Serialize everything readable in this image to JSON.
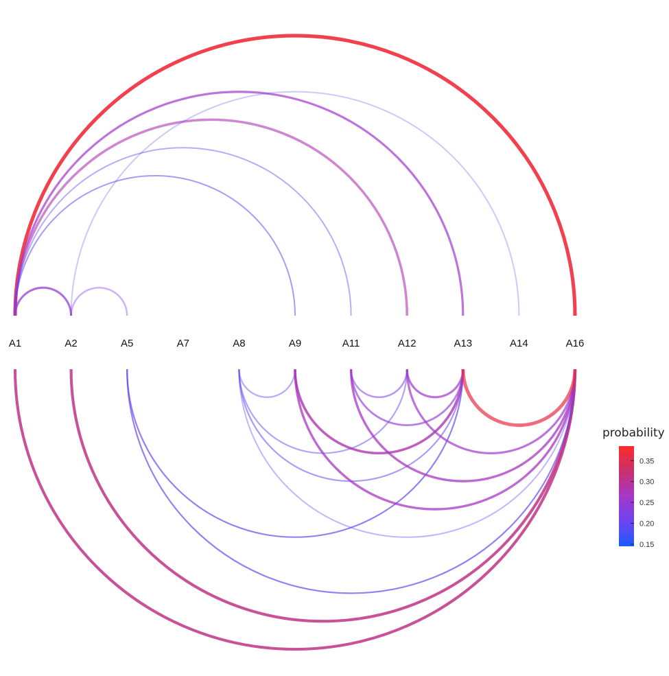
{
  "nodes": [
    "A1",
    "A2",
    "A5",
    "A7",
    "A8",
    "A9",
    "A11",
    "A12",
    "A13",
    "A14",
    "A16"
  ],
  "legend": {
    "title": "probability",
    "ticks": [
      "0.35",
      "0.30",
      "0.25",
      "0.20",
      "0.15"
    ],
    "tick_values": [
      0.35,
      0.3,
      0.25,
      0.2,
      0.15
    ],
    "min": 0.145,
    "max": 0.385,
    "colors": [
      "#1a5cff",
      "#6e44f0",
      "#a438c8",
      "#c8306e",
      "#ff2a2a"
    ]
  },
  "edges_upper": [
    {
      "from": "A1",
      "to": "A16",
      "probability": 0.37,
      "opacity": 0.9
    },
    {
      "from": "A1",
      "to": "A13",
      "probability": 0.26,
      "opacity": 0.7
    },
    {
      "from": "A1",
      "to": "A12",
      "probability": 0.28,
      "opacity": 0.6
    },
    {
      "from": "A1",
      "to": "A11",
      "probability": 0.19,
      "opacity": 0.45
    },
    {
      "from": "A1",
      "to": "A9",
      "probability": 0.19,
      "opacity": 0.55
    },
    {
      "from": "A2",
      "to": "A14",
      "probability": 0.19,
      "opacity": 0.3
    },
    {
      "from": "A1",
      "to": "A2",
      "probability": 0.25,
      "opacity": 0.75
    },
    {
      "from": "A2",
      "to": "A5",
      "probability": 0.22,
      "opacity": 0.4
    }
  ],
  "edges_lower": [
    {
      "from": "A1",
      "to": "A16",
      "probability": 0.31,
      "opacity": 0.85
    },
    {
      "from": "A2",
      "to": "A16",
      "probability": 0.31,
      "opacity": 0.85
    },
    {
      "from": "A5",
      "to": "A16",
      "probability": 0.2,
      "opacity": 0.7
    },
    {
      "from": "A5",
      "to": "A13",
      "probability": 0.2,
      "opacity": 0.7
    },
    {
      "from": "A8",
      "to": "A9",
      "probability": 0.21,
      "opacity": 0.45
    },
    {
      "from": "A8",
      "to": "A16",
      "probability": 0.19,
      "opacity": 0.4
    },
    {
      "from": "A8",
      "to": "A13",
      "probability": 0.2,
      "opacity": 0.55
    },
    {
      "from": "A8",
      "to": "A12",
      "probability": 0.2,
      "opacity": 0.5
    },
    {
      "from": "A9",
      "to": "A16",
      "probability": 0.27,
      "opacity": 0.75
    },
    {
      "from": "A9",
      "to": "A13",
      "probability": 0.28,
      "opacity": 0.8
    },
    {
      "from": "A11",
      "to": "A12",
      "probability": 0.22,
      "opacity": 0.55
    },
    {
      "from": "A11",
      "to": "A13",
      "probability": 0.24,
      "opacity": 0.65
    },
    {
      "from": "A11",
      "to": "A16",
      "probability": 0.27,
      "opacity": 0.75
    },
    {
      "from": "A12",
      "to": "A13",
      "probability": 0.26,
      "opacity": 0.7
    },
    {
      "from": "A12",
      "to": "A16",
      "probability": 0.26,
      "opacity": 0.7
    },
    {
      "from": "A13",
      "to": "A16",
      "probability": 0.36,
      "opacity": 0.7
    }
  ]
}
